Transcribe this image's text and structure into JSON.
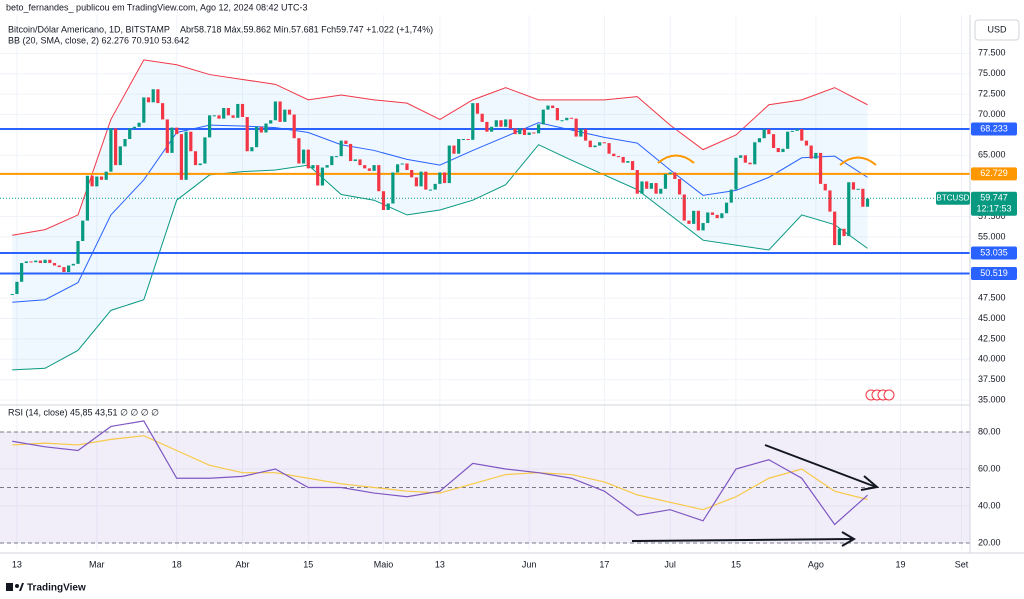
{
  "chart_data": {
    "type": "candlestick",
    "attribution": "beto_fernandes_ publicou em TradingView.com, Ago 12, 2024 08:42 UTC-3",
    "title": "Bitcoin/Dólar Americano, 1D, BITSTAMP",
    "ohlc_legend": "Abr58.718 Máx.59.862 Mín.57.681 Fch59.747 +1.022 (+1,74%)",
    "currency": "USD",
    "footer": "TradingView",
    "up_color": "#089981",
    "down_color": "#f23645",
    "closes": [
      48,
      49.5,
      51.8,
      52,
      51.9,
      52.1,
      51.8,
      52.2,
      51.8,
      51.5,
      51.3,
      50.7,
      51.5,
      51.7,
      54.5,
      57,
      62.5,
      61.2,
      62.4,
      62,
      63,
      68.3,
      63.8,
      66.1,
      67,
      68.3,
      68.5,
      69,
      72.1,
      71.5,
      73.1,
      71.4,
      69.4,
      65.3,
      68.4,
      67.6,
      62,
      67.9,
      65.5,
      63.8,
      64,
      67.2,
      69.9,
      69.9,
      69.5,
      70.8,
      69.9,
      69.6,
      71.3,
      69.7,
      65.5,
      66,
      68.5,
      67.8,
      68.9,
      69.3,
      71.6,
      69.1,
      70.6,
      70,
      67.1,
      64,
      65.7,
      63.4,
      63.8,
      61.3,
      63.5,
      63.8,
      64.9,
      64.9,
      66.8,
      66.4,
      64.3,
      64.5,
      63.8,
      63.4,
      63.1,
      63.8,
      60.6,
      58.3,
      59.1,
      62.9,
      63.9,
      64,
      63.2,
      62.3,
      61.2,
      63,
      60.8,
      60.8,
      61.5,
      62.9,
      61.6,
      66.2,
      65.2,
      67,
      67,
      66.9,
      71.4,
      70.1,
      69.1,
      67.9,
      68.5,
      69.3,
      68.5,
      69.4,
      68.3,
      67.6,
      68.3,
      67.5,
      67.8,
      67.7,
      68.8,
      70.6,
      71.1,
      70.8,
      69.3,
      69.3,
      69.6,
      69.5,
      67.3,
      68.2,
      66.8,
      66,
      66.2,
      66.6,
      66.5,
      65.2,
      64.9,
      64.8,
      64.1,
      64.3,
      63.2,
      60.3,
      61.8,
      60.9,
      61.6,
      60.3,
      60.9,
      62.7,
      62.9,
      62.1,
      60.2,
      57,
      56.6,
      58.2,
      55.8,
      56.7,
      58,
      57.7,
      57.3,
      57.9,
      59.2,
      60.8,
      64.7,
      65,
      64.1,
      63.9,
      66.6,
      67.1,
      68.2,
      67.6,
      65.9,
      65.4,
      65.8,
      67.9,
      68,
      68.2,
      66.8,
      66.2,
      64.6,
      65.3,
      61.5,
      60.7,
      58.1,
      54,
      56,
      55.1,
      61.7,
      60.8,
      60.9,
      58.7,
      59.7
    ],
    "xlim": [
      -2.6,
      203.8
    ],
    "xticks": [
      {
        "value": 1,
        "label": "13"
      },
      {
        "value": 18,
        "label": "Mar"
      },
      {
        "value": 35,
        "label": "18"
      },
      {
        "value": 49,
        "label": "Abr"
      },
      {
        "value": 63,
        "label": "15"
      },
      {
        "value": 79,
        "label": "Maio"
      },
      {
        "value": 91,
        "label": "13"
      },
      {
        "value": 110,
        "label": "Jun"
      },
      {
        "value": 126,
        "label": "17"
      },
      {
        "value": 140,
        "label": "Jul"
      },
      {
        "value": 154,
        "label": "15"
      },
      {
        "value": 171,
        "label": "Ago"
      },
      {
        "value": 189,
        "label": "19"
      },
      {
        "value": 202,
        "label": "Set"
      }
    ],
    "ylim": [
      34.4,
      82.2
    ],
    "yticks": [
      {
        "value": 77.5,
        "label": "77.500"
      },
      {
        "value": 75,
        "label": "75.000"
      },
      {
        "value": 72.5,
        "label": "72.500"
      },
      {
        "value": 70,
        "label": "70.000"
      },
      {
        "value": 65,
        "label": "65.000"
      },
      {
        "value": 57.5,
        "label": "57.500"
      },
      {
        "value": 55,
        "label": "55.000"
      },
      {
        "value": 47.5,
        "label": "47.500"
      },
      {
        "value": 45,
        "label": "45.000"
      },
      {
        "value": 42.5,
        "label": "42.500"
      },
      {
        "value": 40,
        "label": "40.000"
      },
      {
        "value": 37.5,
        "label": "37.500"
      },
      {
        "value": 35,
        "label": "35.000"
      }
    ],
    "grid": true,
    "bb": {
      "label": "BB (20, SMA, close, 2) 62.276 70.910 53.642",
      "x": [
        0,
        7,
        14,
        21,
        28,
        35,
        42,
        49,
        56,
        63,
        70,
        77,
        84,
        91,
        98,
        105,
        112,
        119,
        126,
        133,
        140,
        147,
        154,
        161,
        168,
        175,
        182
      ],
      "basis": [
        47,
        47.3,
        49.4,
        57.7,
        62,
        67.8,
        68.7,
        68.6,
        68.4,
        67.8,
        66.3,
        65.6,
        64.5,
        63.8,
        65.6,
        67.3,
        69,
        68.1,
        67.2,
        66.5,
        63.2,
        60.1,
        60.7,
        62.3,
        64.7,
        64.9,
        62.3
      ],
      "upper": [
        55.2,
        55.9,
        57.7,
        69.4,
        76.7,
        76.1,
        74.9,
        74.3,
        73.7,
        71.8,
        72.4,
        71.8,
        71.4,
        69.4,
        71.8,
        73.3,
        71.8,
        71.8,
        71.8,
        72.2,
        68.7,
        65.7,
        67.5,
        71.2,
        71.8,
        73.3,
        71.2
      ],
      "lower": [
        38.7,
        38.9,
        41.1,
        46,
        47.3,
        59.5,
        62.6,
        63,
        63.2,
        63.8,
        60.2,
        59.5,
        57.7,
        58.3,
        59.5,
        61.4,
        66.3,
        64.4,
        62.6,
        60.8,
        57.7,
        54.6,
        54,
        53.4,
        57.7,
        56.5,
        53.6
      ],
      "basis_color": "#2962ff",
      "upper_color": "#f23645",
      "lower_color": "#089981"
    },
    "levels": [
      {
        "value": 68.233,
        "color": "#2962ff"
      },
      {
        "value": 62.729,
        "color": "#ff9800"
      },
      {
        "value": 53.035,
        "color": "#2962ff"
      },
      {
        "value": 50.519,
        "color": "#2962ff"
      }
    ],
    "last_price": {
      "symbol": "BTCUSD",
      "value": 59.747,
      "countdown": "12:17:53",
      "color": "#089981"
    },
    "rsi": {
      "label": "RSI (14, close) 45,85 43,51 ∅ ∅ ∅ ∅",
      "x": [
        0,
        7,
        14,
        21,
        28,
        35,
        42,
        49,
        56,
        63,
        70,
        77,
        84,
        91,
        98,
        105,
        112,
        119,
        126,
        133,
        140,
        147,
        154,
        161,
        168,
        175,
        182
      ],
      "values": [
        75,
        72,
        70,
        83,
        86,
        55,
        55,
        56,
        60,
        50,
        50,
        47,
        45,
        48,
        63,
        60,
        58,
        55,
        48,
        35,
        38,
        32,
        60,
        65,
        55,
        30,
        45.85
      ],
      "ma": [
        73,
        74,
        73,
        76,
        78,
        70,
        62,
        58,
        58,
        55,
        52,
        50,
        48,
        47,
        52,
        57,
        58,
        57,
        53,
        46,
        42,
        38,
        45,
        55,
        60,
        48,
        43.51
      ],
      "color": "#7e57c2",
      "ma_color": "#f7c948",
      "ylim": [
        16.2,
        94.6
      ],
      "yticks": [
        {
          "value": 80,
          "label": "80.00"
        },
        {
          "value": 60,
          "label": "60.00"
        },
        {
          "value": 40,
          "label": "40.00"
        },
        {
          "value": 20,
          "label": "20.00"
        }
      ]
    }
  }
}
